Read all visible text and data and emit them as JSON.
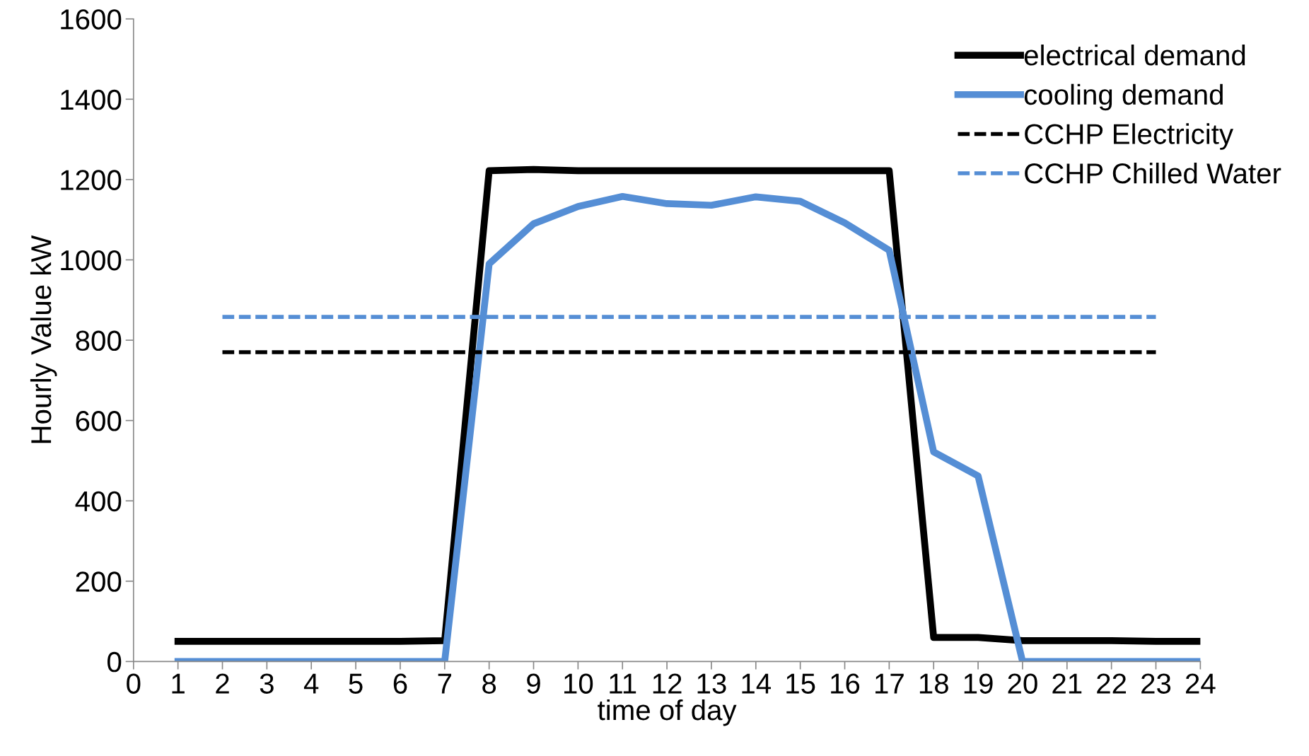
{
  "chart_data": {
    "type": "line",
    "xlabel": "time of day",
    "ylabel": "Hourly Value kW",
    "xlim": [
      0,
      24
    ],
    "xticks": [
      0,
      1,
      2,
      3,
      4,
      5,
      6,
      7,
      8,
      9,
      10,
      11,
      12,
      13,
      14,
      15,
      16,
      17,
      18,
      19,
      20,
      21,
      22,
      23,
      24
    ],
    "ylim": [
      0,
      1600
    ],
    "yticks": [
      0,
      200,
      400,
      600,
      800,
      1000,
      1200,
      1400,
      1600
    ],
    "grid": false,
    "legend": "top right",
    "marker": "none",
    "series": [
      {
        "name": "electrical demand",
        "color": "#000000",
        "line_style": "solid",
        "x": [
          1,
          2,
          3,
          4,
          5,
          6,
          7,
          8,
          9,
          10,
          11,
          12,
          13,
          14,
          15,
          16,
          17,
          18,
          19,
          20,
          21,
          22,
          23,
          24
        ],
        "values": [
          50,
          50,
          50,
          50,
          50,
          50,
          52,
          1222,
          1225,
          1222,
          1222,
          1222,
          1222,
          1222,
          1222,
          1222,
          1222,
          60,
          60,
          52,
          52,
          52,
          50,
          50
        ]
      },
      {
        "name": "cooling demand",
        "color": "#558ed5",
        "line_style": "solid",
        "x": [
          1,
          2,
          3,
          4,
          5,
          6,
          7,
          8,
          9,
          10,
          11,
          12,
          13,
          14,
          15,
          16,
          17,
          18,
          19,
          20,
          21,
          22,
          23,
          24
        ],
        "values": [
          0,
          0,
          0,
          0,
          0,
          0,
          0,
          990,
          1090,
          1133,
          1158,
          1140,
          1136,
          1157,
          1146,
          1092,
          1024,
          522,
          462,
          0,
          0,
          0,
          0,
          0
        ]
      },
      {
        "name": "CCHP Electricity",
        "color": "#000000",
        "line_style": "dashed",
        "x": [
          2,
          3,
          4,
          5,
          6,
          7,
          8,
          9,
          10,
          11,
          12,
          13,
          14,
          15,
          16,
          17,
          18,
          19,
          20,
          21,
          22,
          23
        ],
        "values": [
          770,
          770,
          770,
          770,
          770,
          770,
          770,
          770,
          770,
          770,
          770,
          770,
          770,
          770,
          770,
          770,
          770,
          770,
          770,
          770,
          770,
          770
        ]
      },
      {
        "name": "CCHP Chilled Water",
        "color": "#558ed5",
        "line_style": "dashed",
        "x": [
          2,
          3,
          4,
          5,
          6,
          7,
          8,
          9,
          10,
          11,
          12,
          13,
          14,
          15,
          16,
          17,
          18,
          19,
          20,
          21,
          22,
          23
        ],
        "values": [
          858,
          858,
          858,
          858,
          858,
          858,
          858,
          858,
          858,
          858,
          858,
          858,
          858,
          858,
          858,
          858,
          858,
          858,
          858,
          858,
          858,
          858
        ]
      }
    ]
  }
}
